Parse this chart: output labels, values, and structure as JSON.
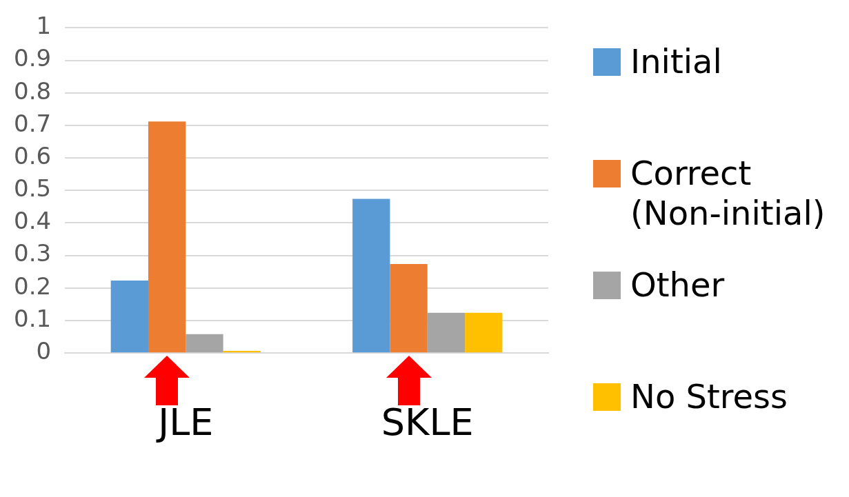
{
  "chart_data": {
    "type": "bar",
    "categories": [
      "JLE",
      "SKLE"
    ],
    "series": [
      {
        "name": "Initial",
        "color": "#5b9bd5",
        "values": [
          0.223,
          0.474
        ]
      },
      {
        "name": "Correct\n(Non-initial)",
        "color": "#ed7d31",
        "values": [
          0.712,
          0.274
        ]
      },
      {
        "name": "Other",
        "color": "#a5a5a5",
        "values": [
          0.058,
          0.124
        ]
      },
      {
        "name": "No Stress",
        "color": "#ffc000",
        "values": [
          0.007,
          0.124
        ]
      }
    ],
    "ylim": [
      0,
      1
    ],
    "yticks": [
      0,
      0.1,
      0.2,
      0.3,
      0.4,
      0.5,
      0.6,
      0.7,
      0.8,
      0.9,
      1
    ],
    "grid": "y",
    "legend": "right"
  }
}
